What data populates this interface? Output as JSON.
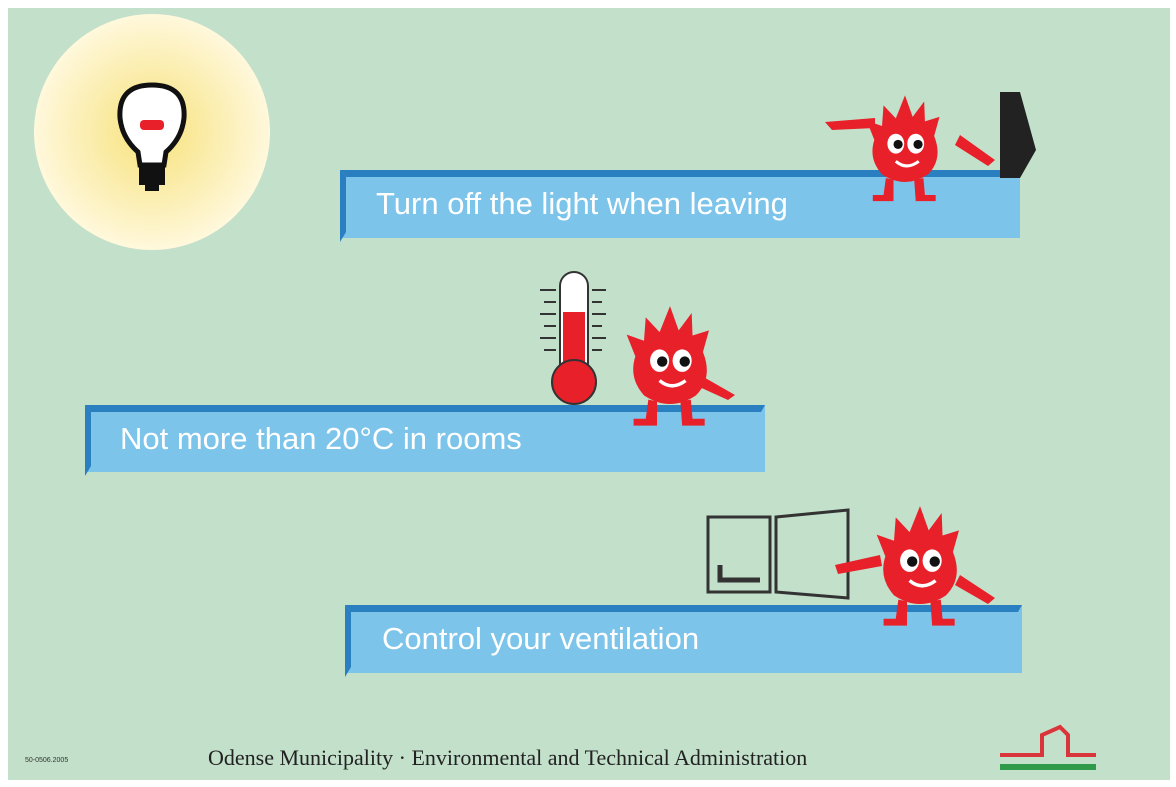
{
  "banners": [
    {
      "text": "Turn off the light when leaving"
    },
    {
      "text": "Not more than 20°C in rooms"
    },
    {
      "text": "Control your ventilation"
    }
  ],
  "footer": {
    "code": "50-0506.2005",
    "credit": "Odense  Municipality · Environmental and Technical Administration"
  }
}
